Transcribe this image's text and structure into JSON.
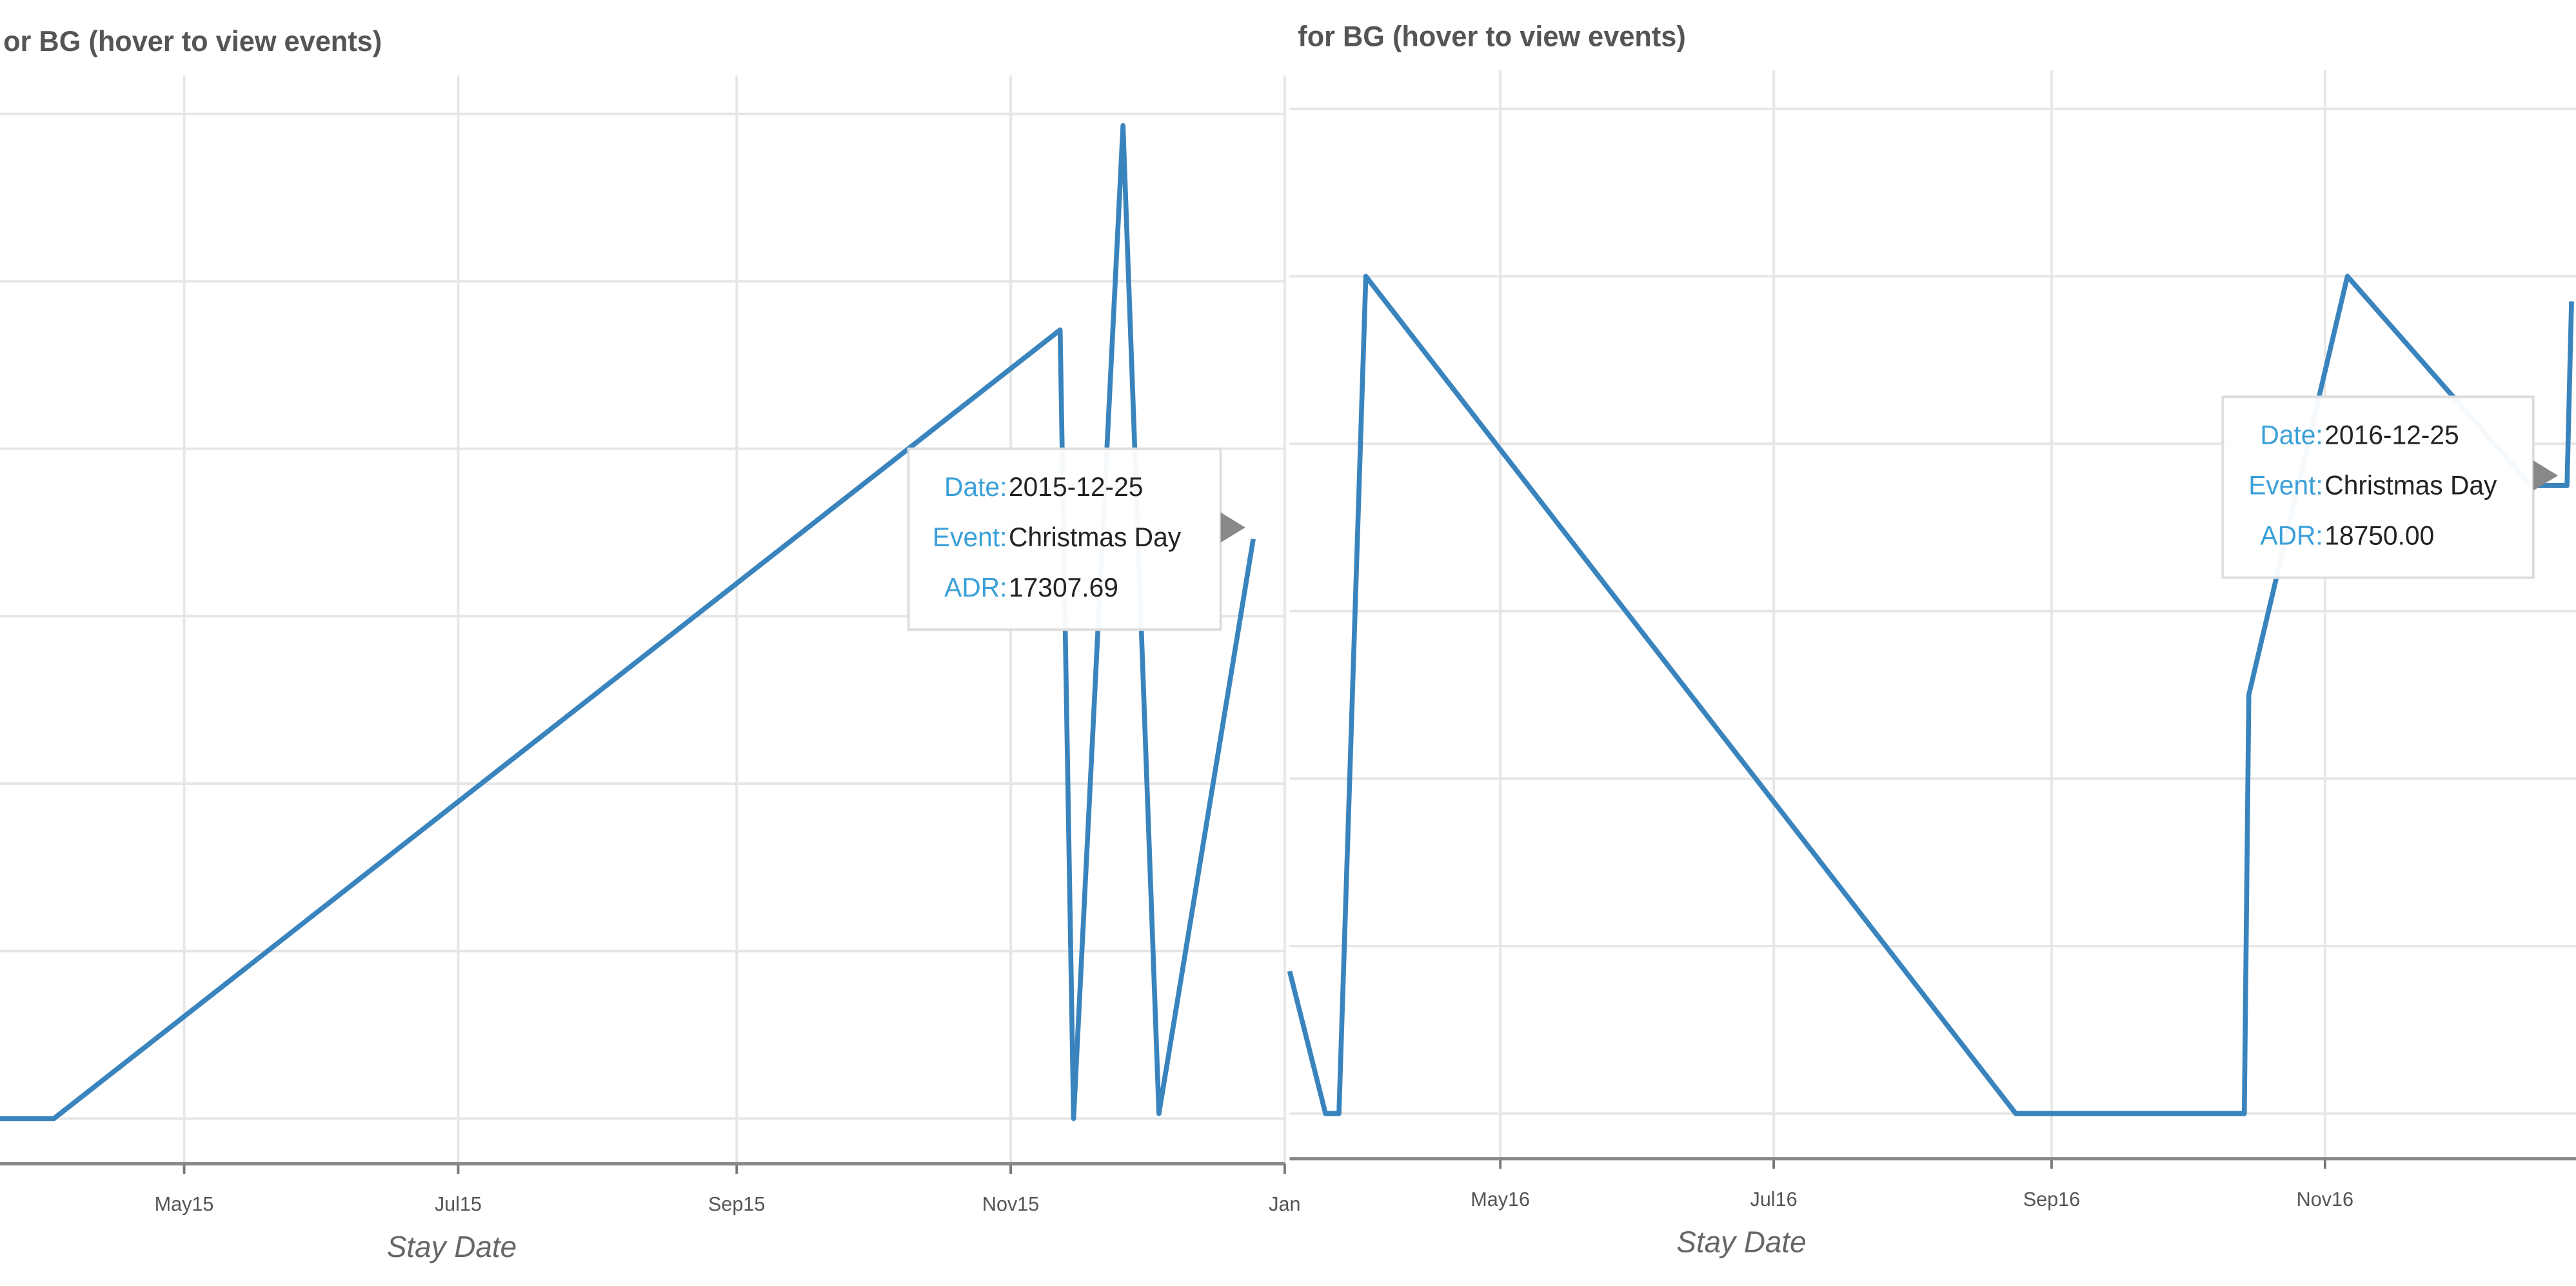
{
  "chart_data": [
    {
      "type": "line",
      "title": "or BG (hover to view events)",
      "x_label": "Stay Date",
      "x": [
        "2015-03-21",
        "2015-04-02",
        "2015-11-12",
        "2015-11-15",
        "2015-11-26",
        "2015-12-04",
        "2015-12-25"
      ],
      "values": [
        0,
        0,
        23550,
        0,
        29650,
        150,
        17307.69
      ],
      "color": "#3a84be",
      "xlim": [
        "2015-03-21",
        "2016-01-01"
      ],
      "xticks": [
        {
          "value": "2015-05-01",
          "label": "May15"
        },
        {
          "value": "2015-07-01",
          "label": "Jul15"
        },
        {
          "value": "2015-09-01",
          "label": "Sep15"
        },
        {
          "value": "2015-11-01",
          "label": "Nov15"
        },
        {
          "value": "2016-01-01",
          "label": "Jan"
        }
      ],
      "ylim": [
        -1350,
        31150
      ],
      "yticks": [
        0,
        5000,
        10000,
        15000,
        20000,
        25000,
        30000
      ],
      "grid": true,
      "tooltip": {
        "date_label": "Date:",
        "date": "2015-12-25",
        "event_label": "Event:",
        "event": "Christmas Day",
        "adr_label": "ADR:",
        "adr": "17307.69"
      }
    },
    {
      "type": "line",
      "title": "for BG (hover to view events)",
      "x_label": "Stay Date",
      "x": [
        "2016-03-15",
        "2016-03-23",
        "2016-03-26",
        "2016-04-01",
        "2016-08-24",
        "2016-10-14",
        "2016-10-15",
        "2016-11-06",
        "2016-12-17",
        "2016-12-25",
        "2016-12-26"
      ],
      "values": [
        4250,
        0,
        0,
        25000,
        0,
        0,
        12500,
        25000,
        18750,
        18750,
        24250
      ],
      "color": "#3a84be",
      "xlim": [
        "2016-03-15",
        "2016-12-27"
      ],
      "xticks": [
        {
          "value": "2016-05-01",
          "label": "May16"
        },
        {
          "value": "2016-07-01",
          "label": "Jul16"
        },
        {
          "value": "2016-09-01",
          "label": "Sep16"
        },
        {
          "value": "2016-11-01",
          "label": "Nov16"
        }
      ],
      "ylim": [
        -1350,
        31150
      ],
      "yticks": [
        0,
        5000,
        10000,
        15000,
        20000,
        25000,
        30000
      ],
      "grid": true,
      "tooltip": {
        "date_label": "Date:",
        "date": "2016-12-25",
        "event_label": "Event:",
        "event": "Christmas Day",
        "adr_label": "ADR:",
        "adr": "18750.00"
      }
    }
  ]
}
